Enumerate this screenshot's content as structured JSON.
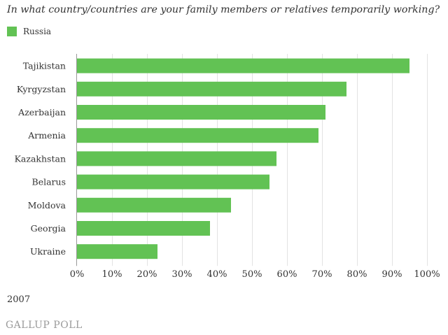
{
  "title": "In what country/countries are your family members or relatives temporarily working?",
  "legend": {
    "label": "Russia",
    "color": "#62c254"
  },
  "year": "2007",
  "source_logo": "GALLUP POLL",
  "chart_data": {
    "type": "bar",
    "orientation": "horizontal",
    "title": "In what country/countries are your family members or relatives temporarily working?",
    "categories": [
      "Tajikistan",
      "Kyrgyzstan",
      "Azerbaijan",
      "Armenia",
      "Kazakhstan",
      "Belarus",
      "Moldova",
      "Georgia",
      "Ukraine"
    ],
    "series": [
      {
        "name": "Russia",
        "color": "#62c254",
        "values": [
          95,
          77,
          71,
          69,
          57,
          55,
          44,
          38,
          23
        ]
      }
    ],
    "xlim": [
      0,
      100
    ],
    "xticks": [
      0,
      10,
      20,
      30,
      40,
      50,
      60,
      70,
      80,
      90,
      100
    ],
    "xtick_labels": [
      "0%",
      "10%",
      "20%",
      "30%",
      "40%",
      "50%",
      "60%",
      "70%",
      "80%",
      "90%",
      "100%"
    ],
    "xlabel": "",
    "ylabel": "",
    "grid": true,
    "legend_position": "top-left"
  }
}
